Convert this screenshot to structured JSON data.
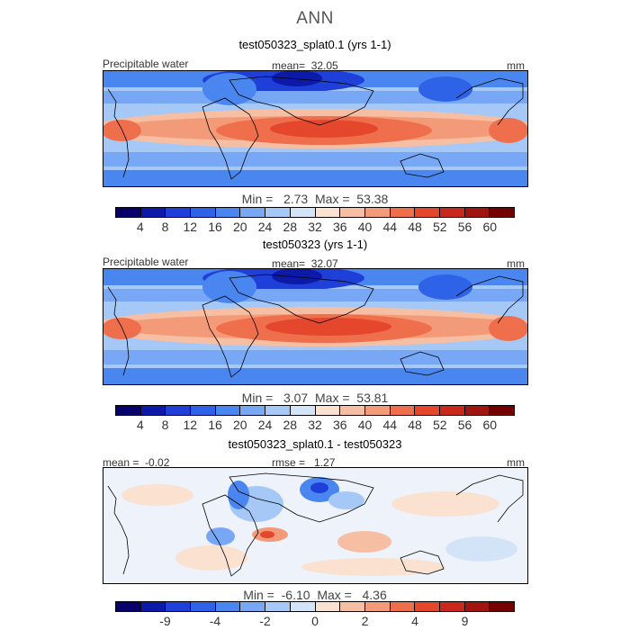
{
  "title": "ANN",
  "colorbar": {
    "colors": [
      "#08006b",
      "#0d1aa8",
      "#1f3fd9",
      "#2e63e8",
      "#4a86f0",
      "#78a8f5",
      "#a6c8f7",
      "#d4e4f8",
      "#fbe1d0",
      "#f6bea3",
      "#f39a78",
      "#ef6f4c",
      "#e5472c",
      "#c9291c",
      "#a01510",
      "#750000"
    ]
  },
  "panels": [
    {
      "title": "test050323_splat0.1 (yrs 1-1)",
      "left_label": "Precipitable water",
      "center_label": "mean=  32.05",
      "right_label": "mm",
      "minmax": "Min =   2.73  Max =  53.38",
      "ticks": [
        "4",
        "8",
        "12",
        "16",
        "20",
        "24",
        "28",
        "32",
        "36",
        "40",
        "44",
        "48",
        "52",
        "56",
        "60"
      ]
    },
    {
      "title": "test050323 (yrs 1-1)",
      "left_label": "Precipitable water",
      "center_label": "mean=  32.07",
      "right_label": "mm",
      "minmax": "Min =   3.07  Max =  53.81",
      "ticks": [
        "4",
        "8",
        "12",
        "16",
        "20",
        "24",
        "28",
        "32",
        "36",
        "40",
        "44",
        "48",
        "52",
        "56",
        "60"
      ]
    },
    {
      "title": "test050323_splat0.1 - test050323",
      "left_label": "mean =  -0.02",
      "center_label": "rmse =   1.27",
      "right_label": "mm",
      "minmax": "Min =  -6.10  Max =   4.36",
      "ticks": [
        "-9",
        "-4",
        "-2",
        "0",
        "2",
        "4",
        "9"
      ]
    }
  ]
}
